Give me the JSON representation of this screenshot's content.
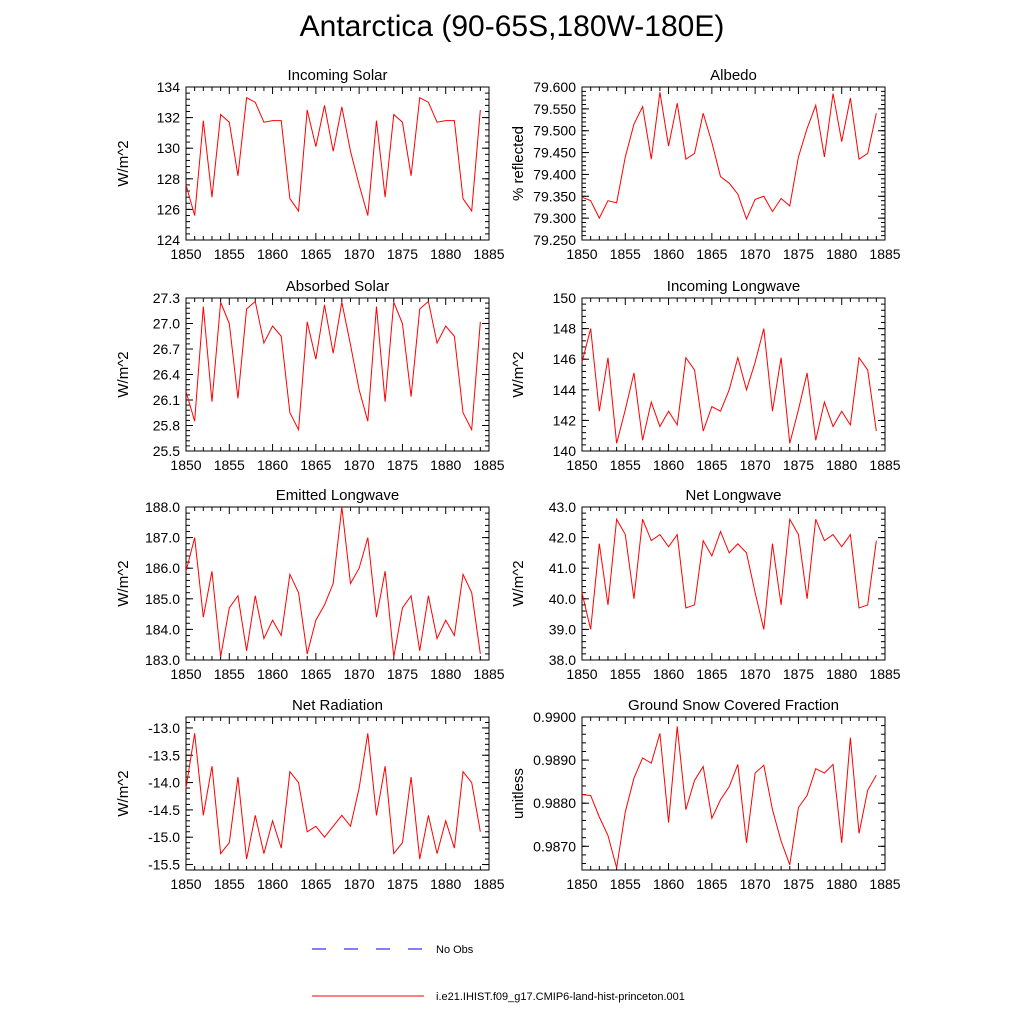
{
  "title": "Antarctica (90-65S,180W-180E)",
  "colors": {
    "model": "#ff0000",
    "obs": "#0000ff",
    "axis": "#000000"
  },
  "legend": {
    "obs_label": "No Obs",
    "model_label": "i.e21.IHIST.f09_g17.CMIP6-land-hist-princeton.001"
  },
  "chart_data": [
    {
      "type": "line",
      "title": "Incoming Solar",
      "ylabel": "W/m^2",
      "xlim": [
        1850,
        1885
      ],
      "xticks": [
        1850,
        1855,
        1860,
        1865,
        1870,
        1875,
        1880,
        1885
      ],
      "ylim": [
        124,
        134
      ],
      "yticks": [
        "124",
        "126",
        "128",
        "130",
        "132",
        "134"
      ],
      "x": [
        1850,
        1851,
        1852,
        1853,
        1854,
        1855,
        1856,
        1857,
        1858,
        1859,
        1860,
        1861,
        1862,
        1863,
        1864,
        1865,
        1866,
        1867,
        1868,
        1869,
        1870,
        1871,
        1872,
        1873,
        1874,
        1875,
        1876,
        1877,
        1878,
        1879,
        1880,
        1881,
        1882,
        1883,
        1884
      ],
      "series": [
        {
          "values": [
            127.6,
            125.6,
            131.8,
            126.8,
            132.2,
            131.7,
            128.2,
            133.3,
            133.0,
            131.7,
            131.8,
            131.8,
            126.7,
            125.9,
            132.5,
            130.1,
            132.8,
            129.8,
            132.7,
            129.8,
            127.6,
            125.6,
            131.8,
            126.8,
            132.2,
            131.7,
            128.2,
            133.3,
            133.0,
            131.7,
            131.8,
            131.8,
            126.7,
            125.9,
            132.5
          ]
        }
      ]
    },
    {
      "type": "line",
      "title": "Albedo",
      "ylabel": "% reflected",
      "xlim": [
        1850,
        1885
      ],
      "xticks": [
        1850,
        1855,
        1860,
        1865,
        1870,
        1875,
        1880,
        1885
      ],
      "ylim": [
        79.25,
        79.6
      ],
      "yticks": [
        "79.250",
        "79.300",
        "79.350",
        "79.400",
        "79.450",
        "79.500",
        "79.550",
        "79.600"
      ],
      "x": [
        1850,
        1851,
        1852,
        1853,
        1854,
        1855,
        1856,
        1857,
        1858,
        1859,
        1860,
        1861,
        1862,
        1863,
        1864,
        1865,
        1866,
        1867,
        1868,
        1869,
        1870,
        1871,
        1872,
        1873,
        1874,
        1875,
        1876,
        1877,
        1878,
        1879,
        1880,
        1881,
        1882,
        1883,
        1884
      ],
      "series": [
        {
          "values": [
            79.348,
            79.34,
            79.3,
            79.34,
            79.335,
            79.44,
            79.515,
            79.555,
            79.435,
            79.588,
            79.465,
            79.563,
            79.435,
            79.448,
            79.54,
            79.473,
            79.395,
            79.38,
            79.355,
            79.298,
            79.343,
            79.35,
            79.315,
            79.345,
            79.328,
            79.44,
            79.505,
            79.558,
            79.44,
            79.585,
            79.475,
            79.575,
            79.435,
            79.448,
            79.54
          ]
        }
      ]
    },
    {
      "type": "line",
      "title": "Absorbed Solar",
      "ylabel": "W/m^2",
      "xlim": [
        1850,
        1885
      ],
      "xticks": [
        1850,
        1855,
        1860,
        1865,
        1870,
        1875,
        1880,
        1885
      ],
      "ylim": [
        25.5,
        27.3
      ],
      "yticks": [
        "25.5",
        "25.8",
        "26.1",
        "26.4",
        "26.7",
        "27.0",
        "27.3"
      ],
      "x": [
        1850,
        1851,
        1852,
        1853,
        1854,
        1855,
        1856,
        1857,
        1858,
        1859,
        1860,
        1861,
        1862,
        1863,
        1864,
        1865,
        1866,
        1867,
        1868,
        1869,
        1870,
        1871,
        1872,
        1873,
        1874,
        1875,
        1876,
        1877,
        1878,
        1879,
        1880,
        1881,
        1882,
        1883,
        1884
      ],
      "series": [
        {
          "values": [
            26.2,
            25.85,
            27.2,
            26.08,
            27.25,
            27.0,
            26.12,
            27.17,
            27.26,
            26.77,
            26.97,
            26.85,
            25.95,
            25.75,
            27.02,
            26.58,
            27.22,
            26.65,
            27.25,
            26.75,
            26.22,
            25.85,
            27.2,
            26.08,
            27.25,
            27.0,
            26.14,
            27.17,
            27.26,
            26.77,
            26.97,
            26.85,
            25.95,
            25.75,
            27.02
          ]
        }
      ]
    },
    {
      "type": "line",
      "title": "Incoming Longwave",
      "ylabel": "W/m^2",
      "xlim": [
        1850,
        1885
      ],
      "xticks": [
        1850,
        1855,
        1860,
        1865,
        1870,
        1875,
        1880,
        1885
      ],
      "ylim": [
        140,
        150
      ],
      "yticks": [
        "140",
        "142",
        "144",
        "146",
        "148",
        "150"
      ],
      "x": [
        1850,
        1851,
        1852,
        1853,
        1854,
        1855,
        1856,
        1857,
        1858,
        1859,
        1860,
        1861,
        1862,
        1863,
        1864,
        1865,
        1866,
        1867,
        1868,
        1869,
        1870,
        1871,
        1872,
        1873,
        1874,
        1875,
        1876,
        1877,
        1878,
        1879,
        1880,
        1881,
        1882,
        1883,
        1884
      ],
      "series": [
        {
          "values": [
            145.8,
            148.0,
            142.6,
            146.1,
            140.5,
            142.7,
            145.1,
            140.7,
            143.2,
            141.6,
            142.6,
            141.7,
            146.1,
            145.3,
            141.3,
            142.9,
            142.6,
            144.0,
            146.1,
            144.0,
            145.8,
            148.0,
            142.6,
            146.1,
            140.5,
            142.7,
            145.1,
            140.7,
            143.2,
            141.6,
            142.6,
            141.7,
            146.1,
            145.3,
            141.3
          ]
        }
      ]
    },
    {
      "type": "line",
      "title": "Emitted Longwave",
      "ylabel": "W/m^2",
      "xlim": [
        1850,
        1885
      ],
      "xticks": [
        1850,
        1855,
        1860,
        1865,
        1870,
        1875,
        1880,
        1885
      ],
      "ylim": [
        183,
        188
      ],
      "yticks": [
        "183.0",
        "184.0",
        "185.0",
        "186.0",
        "187.0",
        "188.0"
      ],
      "x": [
        1850,
        1851,
        1852,
        1853,
        1854,
        1855,
        1856,
        1857,
        1858,
        1859,
        1860,
        1861,
        1862,
        1863,
        1864,
        1865,
        1866,
        1867,
        1868,
        1869,
        1870,
        1871,
        1872,
        1873,
        1874,
        1875,
        1876,
        1877,
        1878,
        1879,
        1880,
        1881,
        1882,
        1883,
        1884
      ],
      "series": [
        {
          "values": [
            185.9,
            187.0,
            184.4,
            185.9,
            183.1,
            184.7,
            185.1,
            183.3,
            185.1,
            183.7,
            184.3,
            183.8,
            185.8,
            185.2,
            183.2,
            184.3,
            184.8,
            185.5,
            188.0,
            185.5,
            186.0,
            187.0,
            184.4,
            185.9,
            183.1,
            184.7,
            185.1,
            183.3,
            185.1,
            183.7,
            184.3,
            183.8,
            185.8,
            185.2,
            183.2
          ]
        }
      ]
    },
    {
      "type": "line",
      "title": "Net Longwave",
      "ylabel": "W/m^2",
      "xlim": [
        1850,
        1885
      ],
      "xticks": [
        1850,
        1855,
        1860,
        1865,
        1870,
        1875,
        1880,
        1885
      ],
      "ylim": [
        38,
        43
      ],
      "yticks": [
        "38.0",
        "39.0",
        "40.0",
        "41.0",
        "42.0",
        "43.0"
      ],
      "x": [
        1850,
        1851,
        1852,
        1853,
        1854,
        1855,
        1856,
        1857,
        1858,
        1859,
        1860,
        1861,
        1862,
        1863,
        1864,
        1865,
        1866,
        1867,
        1868,
        1869,
        1870,
        1871,
        1872,
        1873,
        1874,
        1875,
        1876,
        1877,
        1878,
        1879,
        1880,
        1881,
        1882,
        1883,
        1884
      ],
      "series": [
        {
          "values": [
            40.2,
            39.0,
            41.8,
            39.8,
            42.6,
            42.1,
            40.0,
            42.6,
            41.9,
            42.1,
            41.7,
            42.1,
            39.7,
            39.8,
            41.9,
            41.4,
            42.2,
            41.5,
            41.8,
            41.5,
            40.2,
            39.0,
            41.8,
            39.8,
            42.6,
            42.1,
            40.0,
            42.6,
            41.9,
            42.1,
            41.7,
            42.1,
            39.7,
            39.8,
            41.9
          ]
        }
      ]
    },
    {
      "type": "line",
      "title": "Net Radiation",
      "ylabel": "W/m^2",
      "xlim": [
        1850,
        1885
      ],
      "xticks": [
        1850,
        1855,
        1860,
        1865,
        1870,
        1875,
        1880,
        1885
      ],
      "ylim": [
        -15.6,
        -12.8
      ],
      "yticks": [
        "-15.5",
        "-15.0",
        "-14.5",
        "-14.0",
        "-13.5",
        "-13.0"
      ],
      "ytick_values": [
        -15.5,
        -15.0,
        -14.5,
        -14.0,
        -13.5,
        -13.0
      ],
      "x": [
        1850,
        1851,
        1852,
        1853,
        1854,
        1855,
        1856,
        1857,
        1858,
        1859,
        1860,
        1861,
        1862,
        1863,
        1864,
        1865,
        1866,
        1867,
        1868,
        1869,
        1870,
        1871,
        1872,
        1873,
        1874,
        1875,
        1876,
        1877,
        1878,
        1879,
        1880,
        1881,
        1882,
        1883,
        1884
      ],
      "series": [
        {
          "values": [
            -14.1,
            -13.1,
            -14.6,
            -13.7,
            -15.3,
            -15.1,
            -13.9,
            -15.4,
            -14.6,
            -15.3,
            -14.7,
            -15.2,
            -13.8,
            -14.0,
            -14.9,
            -14.8,
            -15.0,
            -14.8,
            -14.6,
            -14.8,
            -14.1,
            -13.1,
            -14.6,
            -13.7,
            -15.3,
            -15.1,
            -13.9,
            -15.4,
            -14.6,
            -15.3,
            -14.7,
            -15.2,
            -13.8,
            -14.0,
            -14.9
          ]
        }
      ]
    },
    {
      "type": "line",
      "title": "Ground Snow Covered Fraction",
      "ylabel": "unitless",
      "xlim": [
        1850,
        1885
      ],
      "xticks": [
        1850,
        1855,
        1860,
        1865,
        1870,
        1875,
        1880,
        1885
      ],
      "ylim": [
        0.98645,
        0.99
      ],
      "yticks": [
        "0.9870",
        "0.9880",
        "0.9890",
        "0.9900"
      ],
      "ytick_values": [
        0.987,
        0.988,
        0.989,
        0.99
      ],
      "x": [
        1850,
        1851,
        1852,
        1853,
        1854,
        1855,
        1856,
        1857,
        1858,
        1859,
        1860,
        1861,
        1862,
        1863,
        1864,
        1865,
        1866,
        1867,
        1868,
        1869,
        1870,
        1871,
        1872,
        1873,
        1874,
        1875,
        1876,
        1877,
        1878,
        1879,
        1880,
        1881,
        1882,
        1883,
        1884
      ],
      "series": [
        {
          "values": [
            0.9882,
            0.98818,
            0.98768,
            0.98725,
            0.9865,
            0.9878,
            0.98858,
            0.98905,
            0.98893,
            0.98962,
            0.98755,
            0.98978,
            0.98785,
            0.98853,
            0.98885,
            0.98765,
            0.98808,
            0.98838,
            0.9889,
            0.98708,
            0.9887,
            0.98888,
            0.98785,
            0.98712,
            0.98657,
            0.9879,
            0.98818,
            0.9888,
            0.9887,
            0.9889,
            0.98708,
            0.98952,
            0.9873,
            0.9883,
            0.98865
          ]
        }
      ]
    }
  ]
}
